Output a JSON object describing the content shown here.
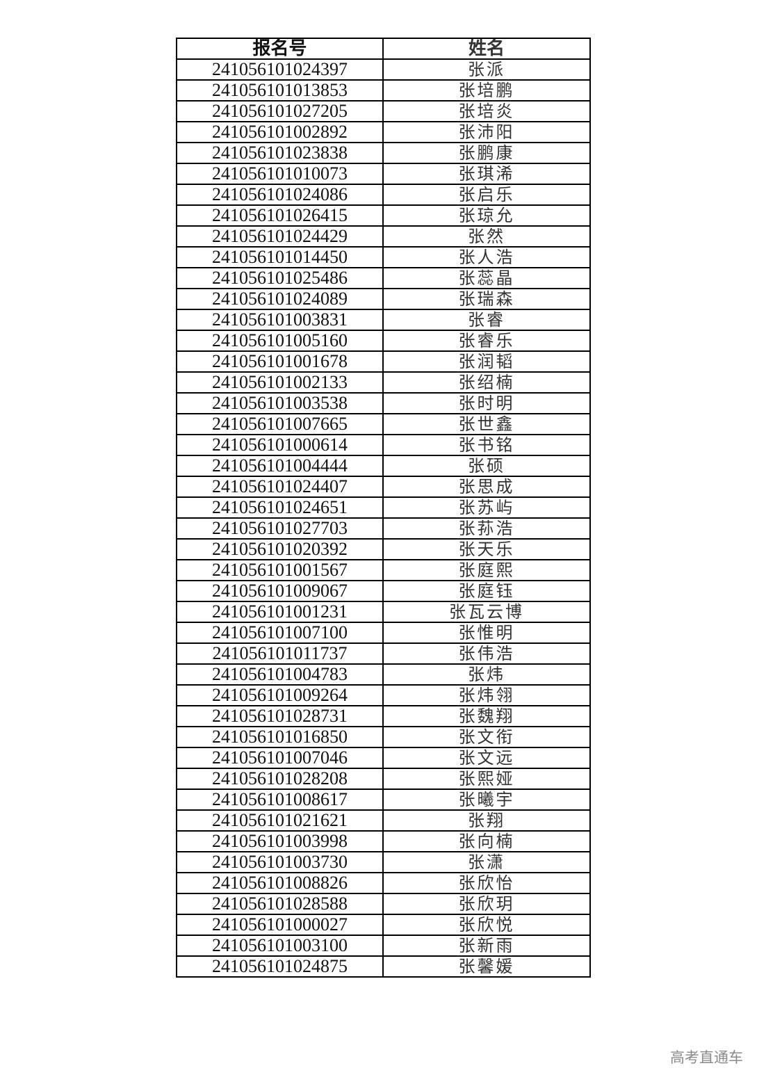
{
  "table": {
    "headers": [
      "报名号",
      "姓名"
    ],
    "rows": [
      [
        "241056101024397",
        "张派"
      ],
      [
        "241056101013853",
        "张培鹏"
      ],
      [
        "241056101027205",
        "张培炎"
      ],
      [
        "241056101002892",
        "张沛阳"
      ],
      [
        "241056101023838",
        "张鹏康"
      ],
      [
        "241056101010073",
        "张琪浠"
      ],
      [
        "241056101024086",
        "张启乐"
      ],
      [
        "241056101026415",
        "张琼允"
      ],
      [
        "241056101024429",
        "张然"
      ],
      [
        "241056101014450",
        "张人浩"
      ],
      [
        "241056101025486",
        "张蕊晶"
      ],
      [
        "241056101024089",
        "张瑞森"
      ],
      [
        "241056101003831",
        "张睿"
      ],
      [
        "241056101005160",
        "张睿乐"
      ],
      [
        "241056101001678",
        "张润韬"
      ],
      [
        "241056101002133",
        "张绍楠"
      ],
      [
        "241056101003538",
        "张时明"
      ],
      [
        "241056101007665",
        "张世鑫"
      ],
      [
        "241056101000614",
        "张书铭"
      ],
      [
        "241056101004444",
        "张硕"
      ],
      [
        "241056101024407",
        "张思成"
      ],
      [
        "241056101024651",
        "张苏屿"
      ],
      [
        "241056101027703",
        "张荪浩"
      ],
      [
        "241056101020392",
        "张天乐"
      ],
      [
        "241056101001567",
        "张庭熙"
      ],
      [
        "241056101009067",
        "张庭钰"
      ],
      [
        "241056101001231",
        "张瓦云博"
      ],
      [
        "241056101007100",
        "张惟明"
      ],
      [
        "241056101011737",
        "张伟浩"
      ],
      [
        "241056101004783",
        "张炜"
      ],
      [
        "241056101009264",
        "张炜翎"
      ],
      [
        "241056101028731",
        "张魏翔"
      ],
      [
        "241056101016850",
        "张文衔"
      ],
      [
        "241056101007046",
        "张文远"
      ],
      [
        "241056101028208",
        "张熙娅"
      ],
      [
        "241056101008617",
        "张曦宇"
      ],
      [
        "241056101021621",
        "张翔"
      ],
      [
        "241056101003998",
        "张向楠"
      ],
      [
        "241056101003730",
        "张潇"
      ],
      [
        "241056101008826",
        "张欣怡"
      ],
      [
        "241056101028588",
        "张欣玥"
      ],
      [
        "241056101000027",
        "张欣悦"
      ],
      [
        "241056101003100",
        "张新雨"
      ],
      [
        "241056101024875",
        "张馨媛"
      ]
    ]
  },
  "watermark": "高考直通车"
}
